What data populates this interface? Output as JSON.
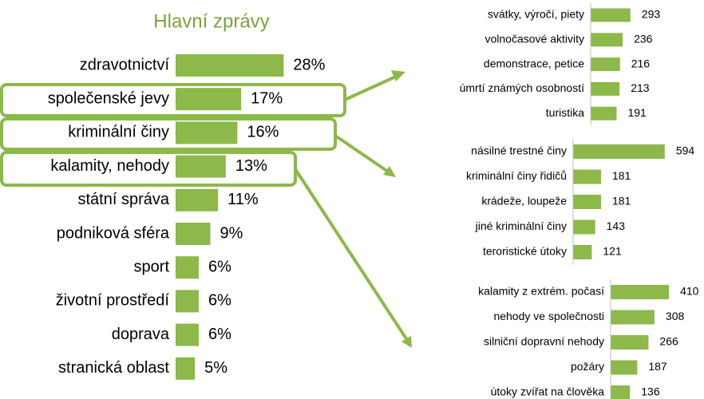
{
  "chart_data": [
    {
      "type": "bar",
      "orientation": "horizontal",
      "title": "Hlavní zprávy",
      "categories": [
        "zdravotnictví",
        "společenské jevy",
        "kriminální činy",
        "kalamity, nehody",
        "státní správa",
        "podniková sféra",
        "sport",
        "životní prostředí",
        "doprava",
        "stranická oblast"
      ],
      "values": [
        28,
        17,
        16,
        13,
        11,
        9,
        6,
        6,
        6,
        5
      ],
      "value_labels": [
        "28%",
        "17%",
        "16%",
        "13%",
        "11%",
        "9%",
        "6%",
        "6%",
        "6%",
        "5%"
      ],
      "color": "#8db84a",
      "xlim": [
        0,
        30
      ]
    },
    {
      "type": "bar",
      "orientation": "horizontal",
      "categories": [
        "svátky, výročí, piety",
        "volnočasové aktivity",
        "demonstrace, petice",
        "úmrtí známých osobností",
        "turistika"
      ],
      "values": [
        293,
        236,
        216,
        213,
        191
      ],
      "color": "#8db84a",
      "xlim": [
        0,
        600
      ]
    },
    {
      "type": "bar",
      "orientation": "horizontal",
      "categories": [
        "násilné trestné činy",
        "kriminální činy řidičů",
        "krádeže, loupeže",
        "jiné kriminální činy",
        "teroristické útoky"
      ],
      "values": [
        594,
        181,
        181,
        143,
        121
      ],
      "color": "#8db84a",
      "xlim": [
        0,
        600
      ]
    },
    {
      "type": "bar",
      "orientation": "horizontal",
      "categories": [
        "kalamity z extrém. počasí",
        "nehody ve společnosti",
        "silniční dopravní nehody",
        "požáry",
        "útoky zvířat na člověka"
      ],
      "values": [
        410,
        308,
        266,
        187,
        136
      ],
      "color": "#8db84a",
      "xlim": [
        0,
        600
      ]
    }
  ]
}
